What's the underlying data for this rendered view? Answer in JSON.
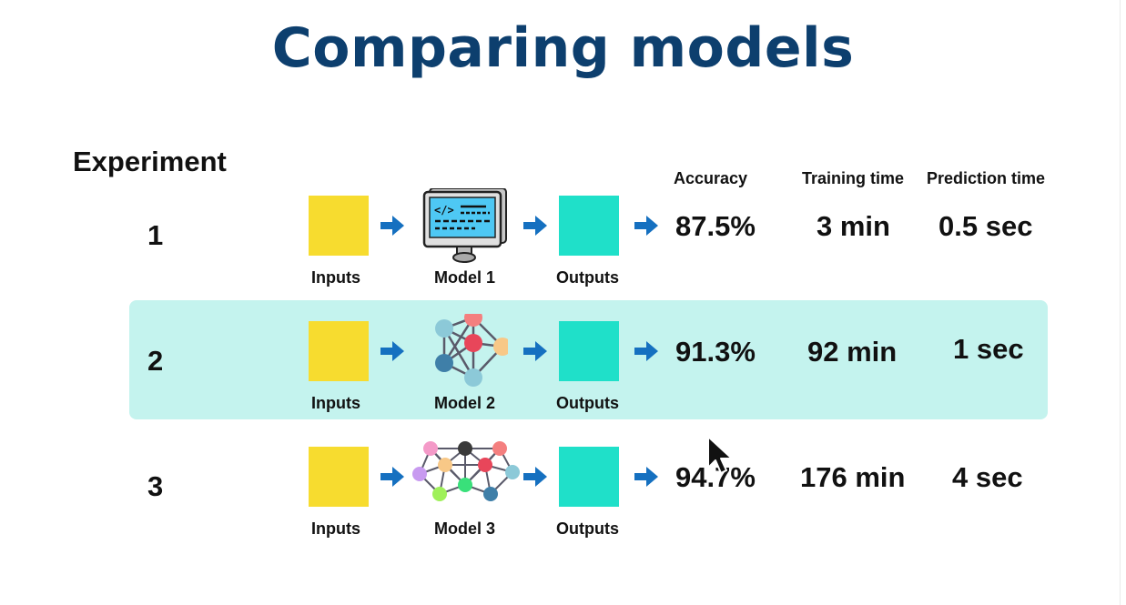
{
  "title": "Comparing models",
  "experiment_label": "Experiment",
  "columns": {
    "accuracy": "Accuracy",
    "training_time": "Training time",
    "prediction_time": "Prediction time"
  },
  "pipeline_labels": {
    "inputs": "Inputs",
    "outputs": "Outputs"
  },
  "colors": {
    "title": "#0d3f6e",
    "inputs_box": "#f7dc2f",
    "outputs_box": "#1fe0c9",
    "arrow": "#1570c0",
    "highlight": "#c4f3ee"
  },
  "experiments": [
    {
      "number": "1",
      "model": "Model 1",
      "model_icon": "computer-code-icon",
      "accuracy": "87.5%",
      "training_time": "3 min",
      "prediction_time": "0.5 sec"
    },
    {
      "number": "2",
      "model": "Model 2",
      "model_icon": "neural-network-icon",
      "accuracy": "91.3%",
      "training_time": "92 min",
      "prediction_time": "1 sec",
      "highlighted": true
    },
    {
      "number": "3",
      "model": "Model 3",
      "model_icon": "large-neural-network-icon",
      "accuracy": "94.7%",
      "training_time": "176 min",
      "prediction_time": "4 sec"
    }
  ]
}
